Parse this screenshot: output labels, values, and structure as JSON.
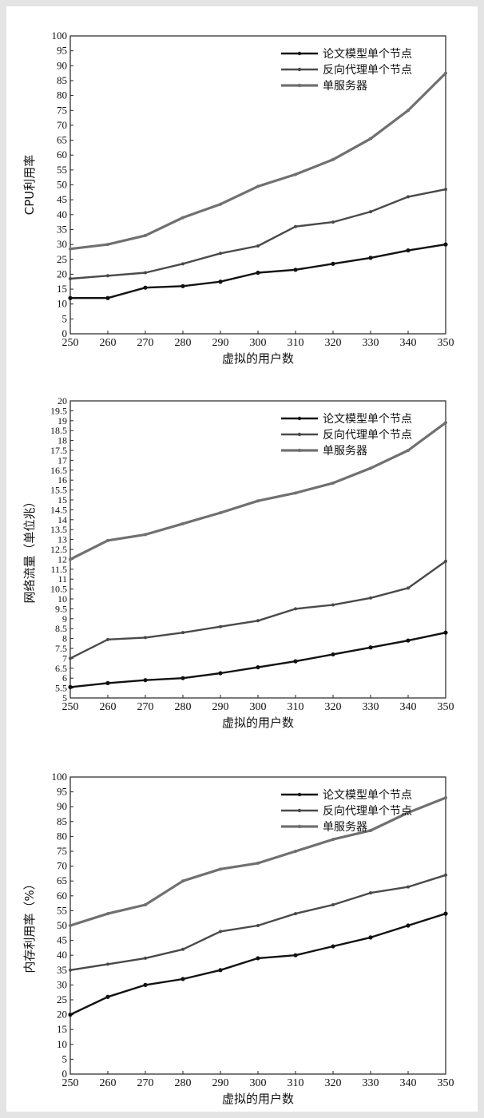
{
  "chart_data": [
    {
      "type": "line",
      "xlabel": "虚拟的用户数",
      "ylabel": "CPU利用率",
      "x": [
        250,
        260,
        270,
        280,
        290,
        300,
        310,
        320,
        330,
        340,
        350
      ],
      "xlim": [
        250,
        350
      ],
      "ylim": [
        0,
        100
      ],
      "yticks": [
        "0",
        "5",
        "10",
        "15",
        "20",
        "25",
        "30",
        "35",
        "40",
        "45",
        "50",
        "55",
        "60",
        "65",
        "70",
        "75",
        "80",
        "85",
        "90",
        "95",
        "100"
      ],
      "legend_position": "top-right",
      "grid": false,
      "series": [
        {
          "name": "论文模型单个节点",
          "color": "#111111",
          "values": [
            12,
            12,
            15.5,
            16,
            17.5,
            20.5,
            21.5,
            23.5,
            25.5,
            28,
            30
          ]
        },
        {
          "name": "反向代理单个节点",
          "color": "#4a4a4a",
          "values": [
            18.5,
            19.5,
            20.5,
            23.5,
            27,
            29.5,
            36,
            37.5,
            41,
            46,
            48.5
          ]
        },
        {
          "name": "单服务器",
          "color": "#707070",
          "values": [
            28.5,
            30,
            33,
            39,
            43.5,
            49.5,
            53.5,
            58.5,
            65.5,
            75,
            87.5
          ]
        }
      ]
    },
    {
      "type": "line",
      "xlabel": "虚拟的用户数",
      "ylabel": "网络流量（单位兆）",
      "x": [
        250,
        260,
        270,
        280,
        290,
        300,
        310,
        320,
        330,
        340,
        350
      ],
      "xlim": [
        250,
        350
      ],
      "ylim": [
        5,
        20
      ],
      "yticks": [
        "5",
        "5.5",
        "6",
        "6.5",
        "7",
        "7.5",
        "8",
        "8.5",
        "9",
        "9.5",
        "10",
        "10.5",
        "11",
        "11.5",
        "12",
        "12.5",
        "13",
        "13.5",
        "14",
        "14.5",
        "15",
        "15.5",
        "16",
        "16.5",
        "17",
        "17.5",
        "18",
        "18.5",
        "19",
        "19.5",
        "20"
      ],
      "legend_position": "top-right",
      "grid": false,
      "series": [
        {
          "name": "论文模型单个节点",
          "color": "#111111",
          "values": [
            5.55,
            5.75,
            5.9,
            6.0,
            6.25,
            6.55,
            6.85,
            7.2,
            7.55,
            7.9,
            8.3
          ]
        },
        {
          "name": "反向代理单个节点",
          "color": "#4a4a4a",
          "values": [
            7.0,
            7.95,
            8.05,
            8.3,
            8.6,
            8.9,
            9.5,
            9.7,
            10.05,
            10.55,
            11.9
          ]
        },
        {
          "name": "单服务器",
          "color": "#707070",
          "values": [
            12.0,
            12.95,
            13.25,
            13.8,
            14.35,
            14.95,
            15.35,
            15.85,
            16.6,
            17.5,
            18.9
          ]
        }
      ]
    },
    {
      "type": "line",
      "xlabel": "虚拟的用户数",
      "ylabel": "内存利用率（%）",
      "x": [
        250,
        260,
        270,
        280,
        290,
        300,
        310,
        320,
        330,
        340,
        350
      ],
      "xlim": [
        250,
        350
      ],
      "ylim": [
        0,
        100
      ],
      "yticks": [
        "0",
        "5",
        "10",
        "15",
        "20",
        "25",
        "30",
        "35",
        "40",
        "45",
        "50",
        "55",
        "60",
        "65",
        "70",
        "75",
        "80",
        "85",
        "90",
        "95",
        "100"
      ],
      "legend_position": "top-right",
      "grid": false,
      "series": [
        {
          "name": "论文模型单个节点",
          "color": "#111111",
          "values": [
            20,
            26,
            30,
            32,
            35,
            39,
            40,
            43,
            46,
            50,
            54
          ]
        },
        {
          "name": "反向代理单个节点",
          "color": "#4a4a4a",
          "values": [
            35,
            37,
            39,
            42,
            48,
            50,
            54,
            57,
            61,
            63,
            67
          ]
        },
        {
          "name": "单服务器",
          "color": "#707070",
          "values": [
            50,
            54,
            57,
            65,
            69,
            71,
            75,
            79,
            82,
            88,
            93
          ]
        }
      ]
    }
  ]
}
